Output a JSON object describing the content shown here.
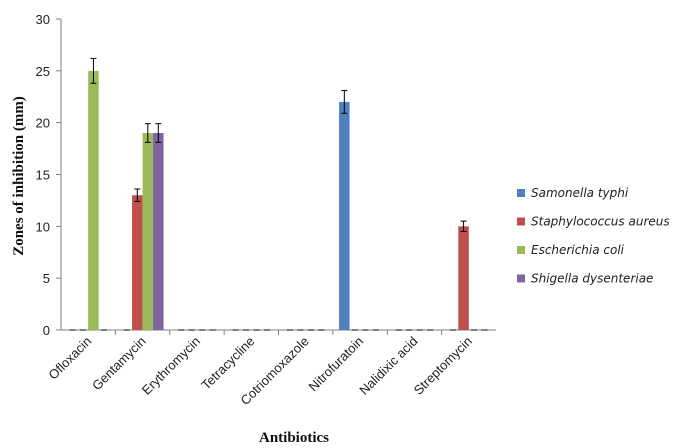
{
  "chart_data": {
    "type": "bar",
    "xlabel": "Antibiotics",
    "ylabel": "Zones of inhibition (mm)",
    "ylim": [
      0,
      30
    ],
    "yticks": [
      0,
      5,
      10,
      15,
      20,
      25,
      30
    ],
    "grid": false,
    "legend_position": "right",
    "categories": [
      "Ofloxacin",
      "Gentamycin",
      "Erythromycin",
      "Tetracycline",
      "Cotriomoxazole",
      "Nitrofuratoin",
      "Nalidixic acid",
      "Streptomycin"
    ],
    "series": [
      {
        "name": "Samonella typhi",
        "color": "#4f81bd",
        "values": [
          0,
          0,
          0,
          0,
          0,
          22,
          0,
          0
        ],
        "errors": [
          0,
          0,
          0,
          0,
          0,
          1.1,
          0,
          0
        ]
      },
      {
        "name": "Staphylococcus aureus",
        "color": "#c0504d",
        "values": [
          0,
          13,
          0,
          0,
          0,
          0,
          0,
          10
        ],
        "errors": [
          0,
          0.6,
          0,
          0,
          0,
          0,
          0,
          0.5
        ]
      },
      {
        "name": "Escherichia coli",
        "color": "#9bbb59",
        "values": [
          25,
          19,
          0,
          0,
          0,
          0,
          0,
          0
        ],
        "errors": [
          1.2,
          0.9,
          0,
          0,
          0,
          0,
          0,
          0
        ]
      },
      {
        "name": "Shigella dysenteriae",
        "color": "#8064a2",
        "values": [
          0,
          19,
          0,
          0,
          0,
          0,
          0,
          0
        ],
        "errors": [
          0,
          0.9,
          0,
          0,
          0,
          0,
          0,
          0
        ]
      }
    ]
  }
}
